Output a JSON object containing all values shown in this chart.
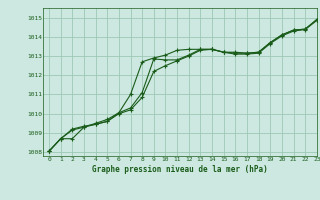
{
  "title": "Graphe pression niveau de la mer (hPa)",
  "bg_color": "#cce8e0",
  "grid_color": "#9dc8b4",
  "line_color": "#1a5c1a",
  "xlim": [
    -0.5,
    23
  ],
  "ylim": [
    1007.8,
    1015.5
  ],
  "yticks": [
    1008,
    1009,
    1010,
    1011,
    1012,
    1013,
    1014,
    1015
  ],
  "xticks": [
    0,
    1,
    2,
    3,
    4,
    5,
    6,
    7,
    8,
    9,
    10,
    11,
    12,
    13,
    14,
    15,
    16,
    17,
    18,
    19,
    20,
    21,
    22,
    23
  ],
  "series1_x": [
    0,
    1,
    2,
    3,
    4,
    5,
    6,
    7,
    8,
    9,
    10,
    11,
    12,
    13,
    14,
    15,
    16,
    17,
    18,
    19,
    20,
    21,
    22,
    23
  ],
  "series1_y": [
    1008.05,
    1008.7,
    1008.7,
    1009.3,
    1009.5,
    1009.7,
    1010.05,
    1011.0,
    1012.7,
    1012.9,
    1013.05,
    1013.3,
    1013.35,
    1013.35,
    1013.35,
    1013.2,
    1013.2,
    1013.15,
    1013.2,
    1013.7,
    1014.1,
    1014.35,
    1014.4,
    1014.9
  ],
  "series2_x": [
    0,
    1,
    2,
    3,
    4,
    5,
    6,
    7,
    8,
    9,
    10,
    11,
    12,
    13,
    14,
    15,
    16,
    17,
    18,
    19,
    20,
    21,
    22,
    23
  ],
  "series2_y": [
    1008.05,
    1008.7,
    1009.2,
    1009.35,
    1009.45,
    1009.6,
    1010.05,
    1010.3,
    1011.1,
    1012.85,
    1012.8,
    1012.8,
    1013.05,
    1013.35,
    1013.35,
    1013.2,
    1013.15,
    1013.15,
    1013.2,
    1013.7,
    1014.1,
    1014.35,
    1014.4,
    1014.9
  ],
  "series3_x": [
    0,
    1,
    2,
    3,
    4,
    5,
    6,
    7,
    8,
    9,
    10,
    11,
    12,
    13,
    14,
    15,
    16,
    17,
    18,
    19,
    20,
    21,
    22,
    23
  ],
  "series3_y": [
    1008.05,
    1008.7,
    1009.15,
    1009.3,
    1009.45,
    1009.6,
    1010.0,
    1010.2,
    1010.85,
    1012.2,
    1012.5,
    1012.75,
    1013.0,
    1013.3,
    1013.35,
    1013.2,
    1013.1,
    1013.1,
    1013.15,
    1013.65,
    1014.05,
    1014.3,
    1014.38,
    1014.85
  ]
}
